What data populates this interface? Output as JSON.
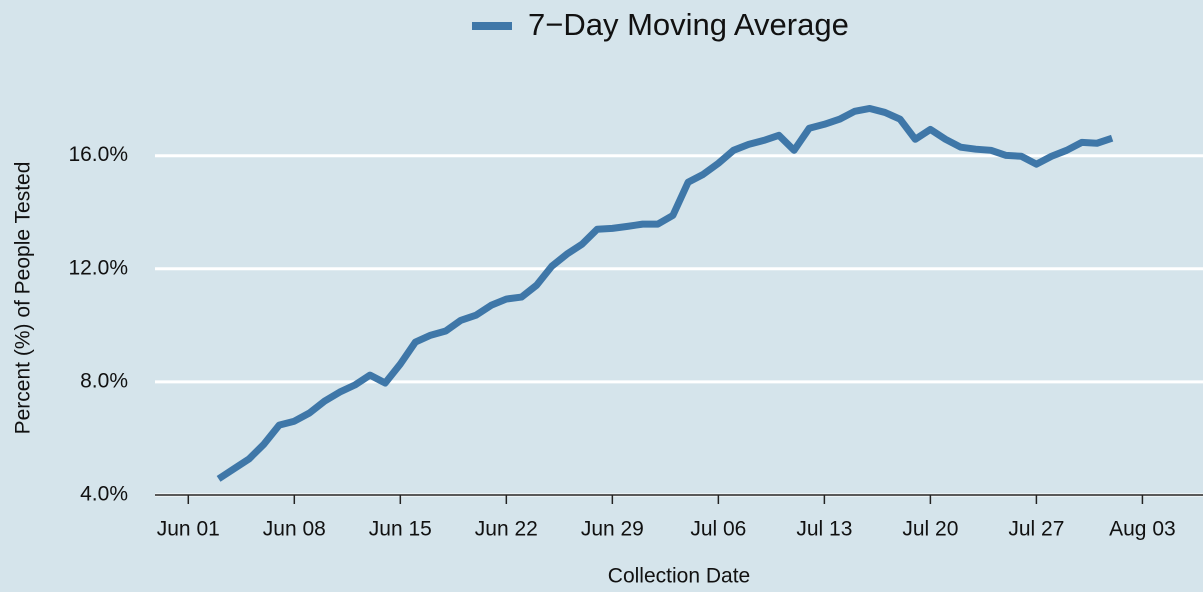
{
  "chart_data": {
    "type": "line",
    "x_title": "Collection Date",
    "y_title": "Percent (%) of People Tested",
    "legend": "top",
    "grid": true,
    "x": [
      "Jun 03",
      "Jun 04",
      "Jun 05",
      "Jun 06",
      "Jun 07",
      "Jun 08",
      "Jun 09",
      "Jun 10",
      "Jun 11",
      "Jun 12",
      "Jun 13",
      "Jun 14",
      "Jun 15",
      "Jun 16",
      "Jun 17",
      "Jun 18",
      "Jun 19",
      "Jun 20",
      "Jun 21",
      "Jun 22",
      "Jun 23",
      "Jun 24",
      "Jun 25",
      "Jun 26",
      "Jun 27",
      "Jun 28",
      "Jun 29",
      "Jun 30",
      "Jul 01",
      "Jul 02",
      "Jul 03",
      "Jul 04",
      "Jul 05",
      "Jul 06",
      "Jul 07",
      "Jul 08",
      "Jul 09",
      "Jul 10",
      "Jul 11",
      "Jul 12",
      "Jul 13",
      "Jul 14",
      "Jul 15",
      "Jul 16",
      "Jul 17",
      "Jul 18",
      "Jul 19",
      "Jul 20",
      "Jul 21",
      "Jul 22",
      "Jul 23",
      "Jul 24",
      "Jul 25",
      "Jul 26",
      "Jul 27",
      "Jul 28",
      "Jul 29",
      "Jul 30",
      "Jul 31",
      "Aug 01"
    ],
    "series": [
      {
        "name": "7−Day Moving Average",
        "color": "#3f77a8",
        "values": [
          4.57,
          4.92,
          5.27,
          5.8,
          6.47,
          6.61,
          6.9,
          7.32,
          7.64,
          7.89,
          8.24,
          7.96,
          8.63,
          9.41,
          9.65,
          9.8,
          10.18,
          10.36,
          10.71,
          10.93,
          11.0,
          11.42,
          12.09,
          12.52,
          12.87,
          13.4,
          13.43,
          13.5,
          13.58,
          13.58,
          13.89,
          15.06,
          15.34,
          15.73,
          16.19,
          16.4,
          16.54,
          16.72,
          16.19,
          16.97,
          17.11,
          17.29,
          17.57,
          17.67,
          17.53,
          17.29,
          16.58,
          16.93,
          16.58,
          16.3,
          16.23,
          16.19,
          16.01,
          15.98,
          15.7,
          15.98,
          16.19,
          16.47,
          16.44,
          16.62
        ]
      }
    ],
    "xlim": [
      "May 30",
      "Aug 07"
    ],
    "xticks": [
      "Jun 01",
      "Jun 08",
      "Jun 15",
      "Jun 22",
      "Jun 29",
      "Jul 06",
      "Jul 13",
      "Jul 20",
      "Jul 27",
      "Aug 03"
    ],
    "ylim": [
      4,
      18.5
    ],
    "yticks": [
      {
        "value": 4,
        "label": "4.0%"
      },
      {
        "value": 8,
        "label": "8.0%"
      },
      {
        "value": 12,
        "label": "12.0%"
      },
      {
        "value": 16,
        "label": "16.0%"
      }
    ]
  }
}
